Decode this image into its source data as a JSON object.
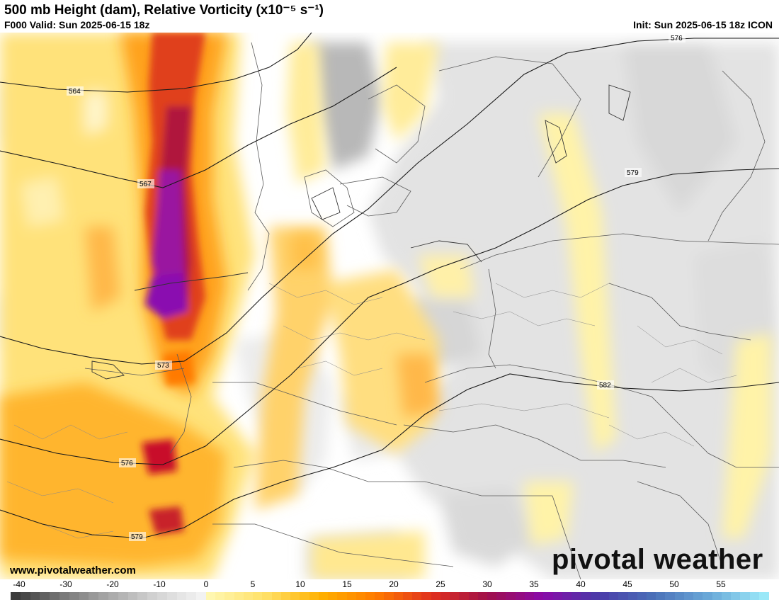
{
  "header": {
    "title": "500 mb Height (dam), Relative Vorticity (x10⁻⁵ s⁻¹)",
    "valid": "F000 Valid: Sun 2025-06-15 18z",
    "init": "Init: Sun 2025-06-15 18z ICON"
  },
  "map": {
    "contour_labels": [
      "564",
      "567",
      "573",
      "576",
      "579",
      "576",
      "579",
      "582"
    ],
    "contour_color": "#1a1a1a",
    "border_color": "#555555"
  },
  "footer": {
    "website": "www.pivotalweather.com",
    "logo": "pivotal weather"
  },
  "colorbar": {
    "ticks": [
      "-40",
      "-30",
      "-20",
      "-10",
      "0",
      "5",
      "10",
      "15",
      "20",
      "25",
      "30",
      "35",
      "40",
      "45",
      "50",
      "55"
    ],
    "negative_colors": [
      "#3c3c3c",
      "#777777",
      "#a8a8a8",
      "#d2d2d2",
      "#f2f2f2"
    ],
    "positive_colors": [
      "#fff7b0",
      "#ffe066",
      "#ffb000",
      "#ff7a00",
      "#e0301e",
      "#a0104a",
      "#8a0aa8",
      "#4a3aa8",
      "#4a70b8",
      "#6aa8d8",
      "#9ae8f8"
    ]
  }
}
